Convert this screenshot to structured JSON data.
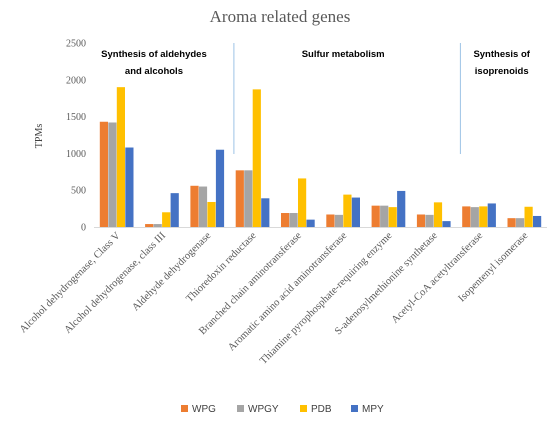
{
  "chart_data": {
    "type": "bar",
    "title": "Aroma related genes",
    "ylabel": "TPMs",
    "xlabel": "",
    "ylim": [
      0,
      2500
    ],
    "yticks": [
      0,
      500,
      1000,
      1500,
      2000,
      2500
    ],
    "grid": false,
    "legend_position": "bottom",
    "categories": [
      "Alcohol dehydrogenase, Class V",
      "Alcohol dehydrogenase, class III",
      "Aldehyde dehydrogenase",
      "Thioredoxin reductase",
      "Branched chain aminotransferase",
      "Aromatic amino acid aminotransferase",
      "Thiamine pyrophosphate-requiring enzyme",
      "S-adenosylmethionine synthetase",
      "Acetyl-CoA acetyltransferase",
      "Isopentenyl isomerase"
    ],
    "series": [
      {
        "name": "WPG",
        "color": "#ED7D31",
        "values": [
          1430,
          40,
          560,
          770,
          190,
          170,
          290,
          170,
          280,
          120
        ]
      },
      {
        "name": "WPGY",
        "color": "#A5A5A5",
        "values": [
          1420,
          40,
          550,
          770,
          190,
          165,
          290,
          165,
          270,
          120
        ]
      },
      {
        "name": "PDB",
        "color": "#FFC000",
        "values": [
          1900,
          200,
          340,
          1870,
          660,
          440,
          270,
          335,
          280,
          275
        ]
      },
      {
        "name": "MPY",
        "color": "#4472C4",
        "values": [
          1080,
          460,
          1050,
          390,
          100,
          400,
          490,
          80,
          320,
          150
        ]
      }
    ],
    "groups": [
      {
        "lines": [
          "Synthesis of aldehydes",
          "and alcohols"
        ],
        "from": 0,
        "to": 2
      },
      {
        "lines": [
          "Sulfur metabolism"
        ],
        "from": 3,
        "to": 7
      },
      {
        "lines": [
          "Synthesis of",
          "isoprenoids"
        ],
        "from": 8,
        "to": 9
      }
    ],
    "divider_color": "#9DC3E6"
  }
}
